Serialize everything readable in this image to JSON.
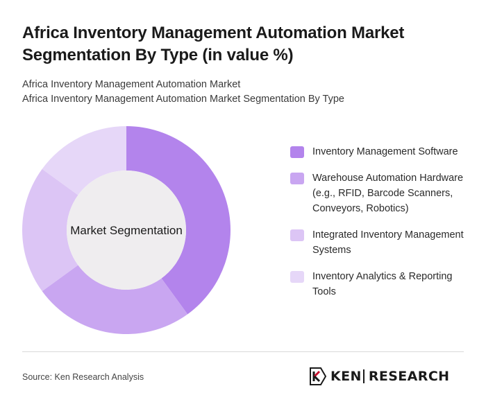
{
  "title": "Africa Inventory Management Automation Market Segmentation By Type (in value %)",
  "subtitle_line1": "Africa Inventory Management Automation Market",
  "subtitle_line2": "Africa Inventory Management Automation Market Segmentation By Type",
  "center_label": "Market Segmentation",
  "source": "Source: Ken Research Analysis",
  "logo": {
    "brand_prefix": "KEN",
    "brand_suffix": "RESEARCH",
    "icon": "ken-research-logo-icon"
  },
  "colors": {
    "background": "#ffffff",
    "center_fill": "#efedef"
  },
  "chart_data": {
    "type": "pie",
    "variant": "donut",
    "title": "Africa Inventory Management Automation Market Segmentation By Type (in value %)",
    "categories": [
      "Inventory Management Software",
      "Warehouse Automation Hardware (e.g., RFID, Barcode Scanners, Conveyors, Robotics)",
      "Integrated Inventory Management Systems",
      "Inventory Analytics & Reporting Tools"
    ],
    "values": [
      40,
      25,
      20,
      15
    ],
    "unit": "%",
    "colors": [
      "#b384ec",
      "#c9a6f1",
      "#dcc5f5",
      "#e6d7f8"
    ],
    "legend_position": "right",
    "grid": false
  }
}
